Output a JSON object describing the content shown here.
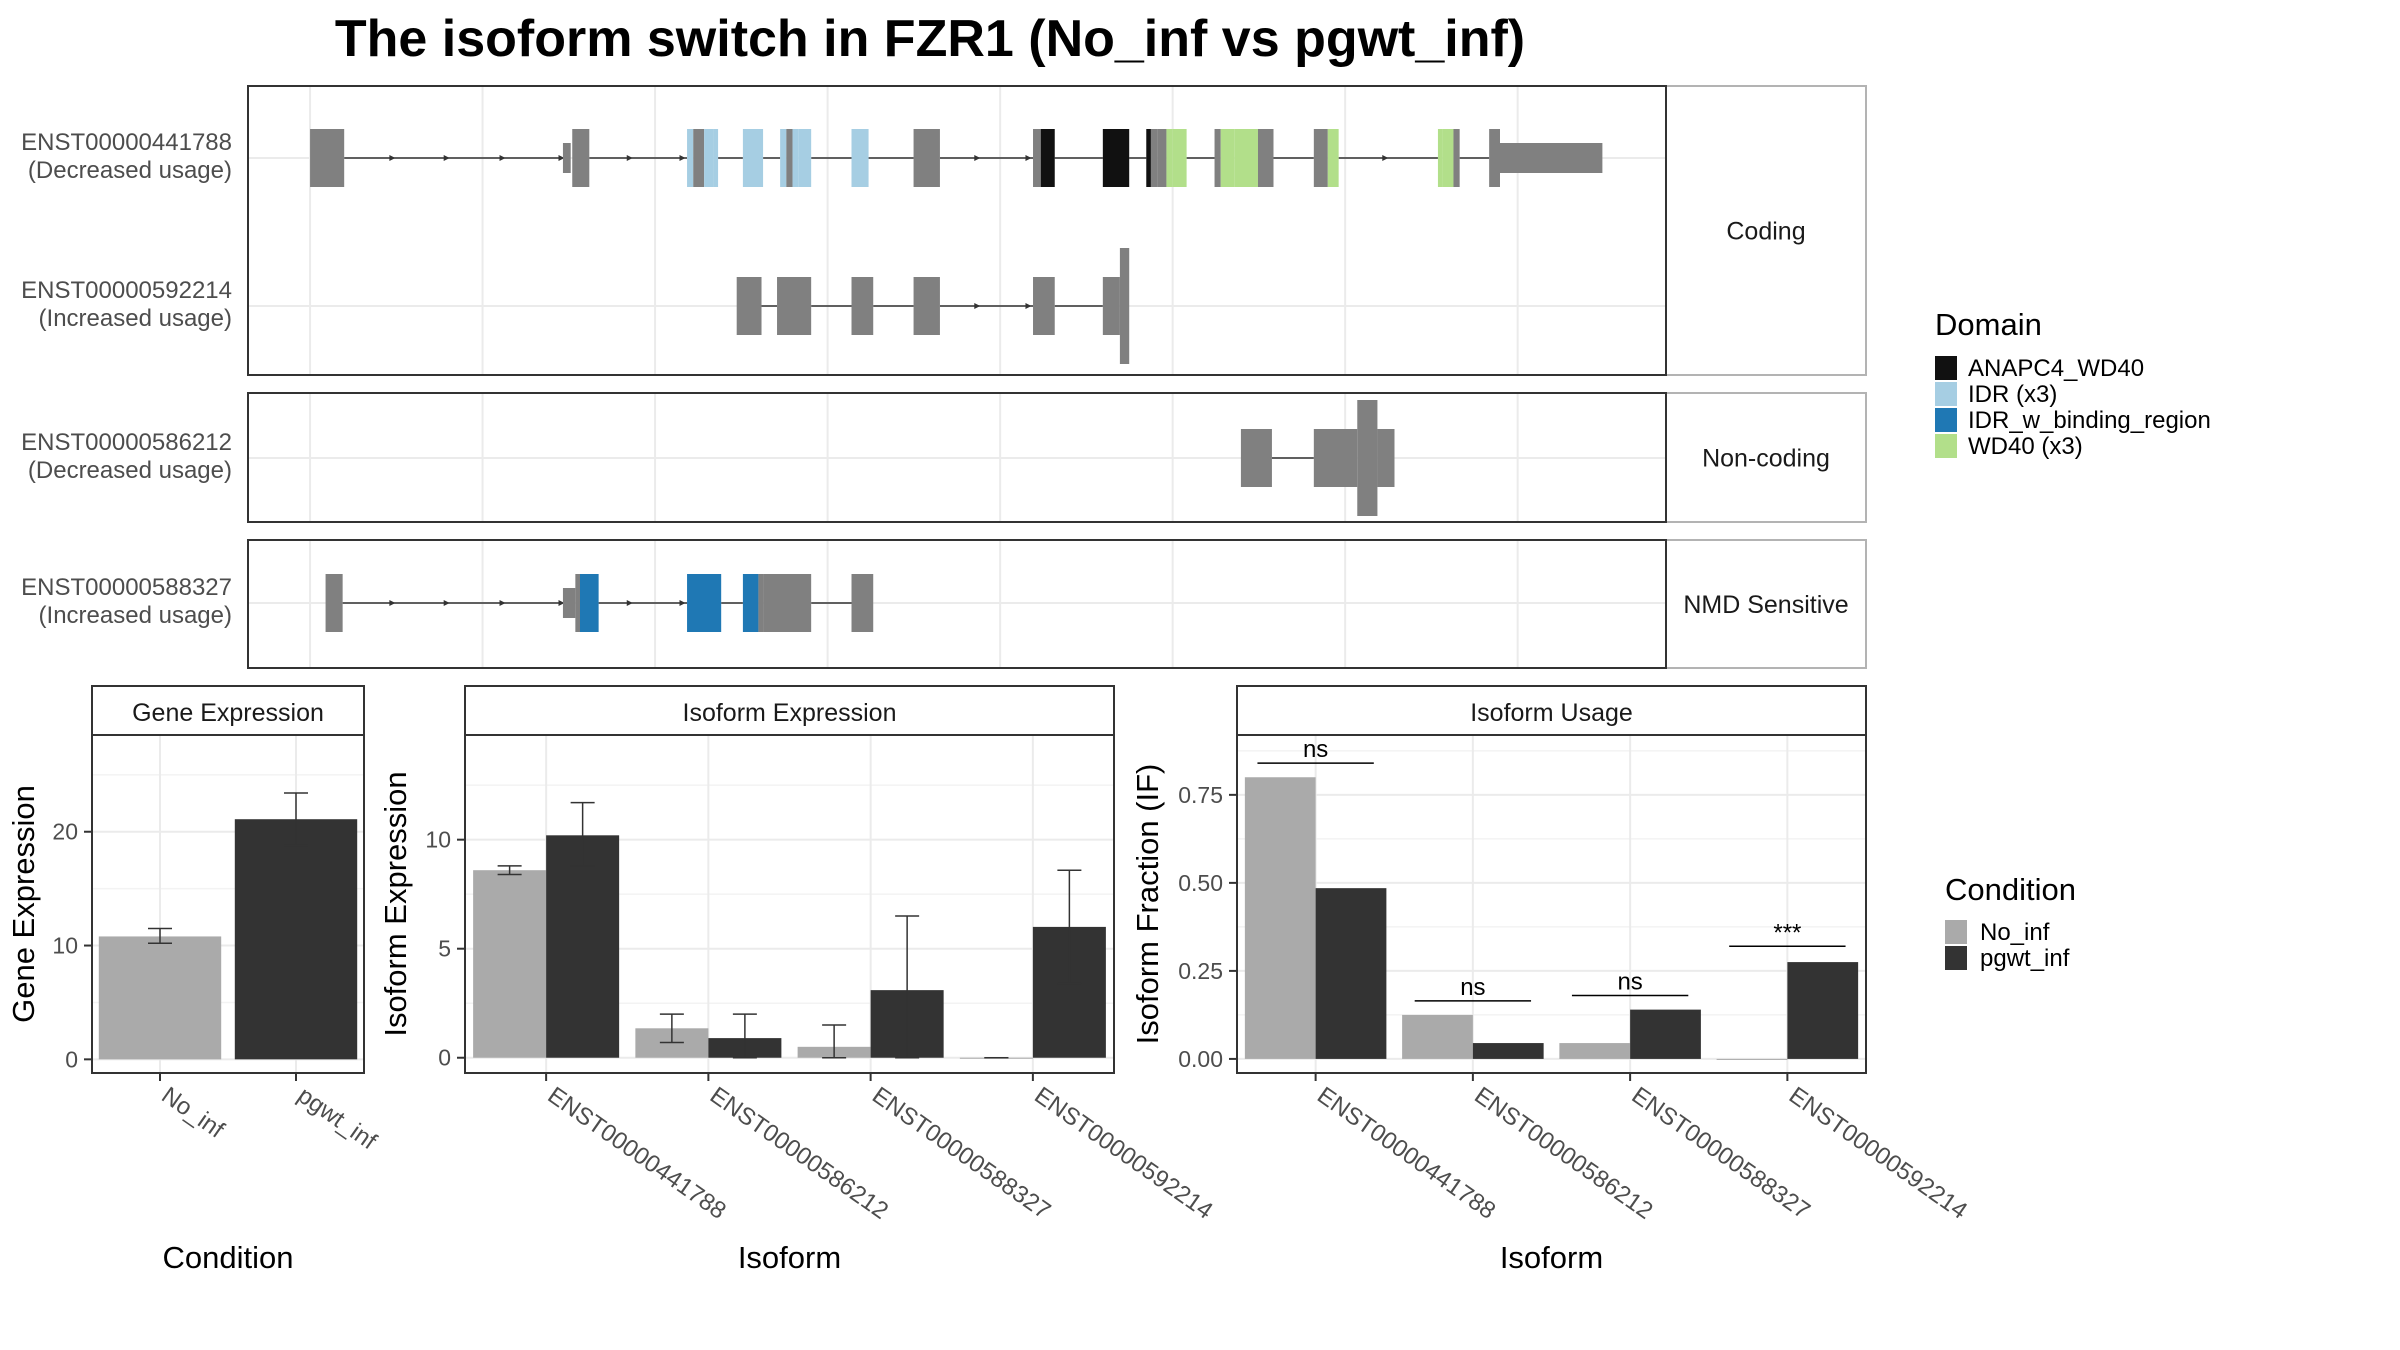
{
  "title": "The isoform switch in FZR1 (No_inf vs pgwt_inf)",
  "colors": {
    "exon": "#808080",
    "ANAPC4_WD40": "#111111",
    "IDR (x3)": "#a6cee3",
    "IDR_w_binding_region": "#1f78b4",
    "WD40 (x3)": "#b2df8a",
    "No_inf": "#aaaaaa",
    "pgwt_inf": "#333333",
    "strip_bg": "#ffffff",
    "grid": "#ebebeb"
  },
  "structure": {
    "facets": [
      {
        "label": "Coding",
        "isoforms": [
          {
            "id": "ENST00000441788",
            "usage": "(Decreased usage)",
            "exons": [
              [
                200,
                222
              ],
              [
                363,
                368
              ],
              [
                369,
                380
              ],
              [
                443,
                447
              ],
              [
                447,
                454
              ],
              [
                454,
                460
              ],
              [
                460,
                463
              ],
              [
                479,
                492
              ],
              [
                503,
                507
              ],
              [
                507,
                511
              ],
              [
                511,
                515
              ],
              [
                515,
                523
              ],
              [
                549,
                560
              ],
              [
                589,
                606
              ],
              [
                666,
                671
              ],
              [
                671,
                680
              ],
              [
                711,
                728
              ],
              [
                739,
                742
              ],
              [
                742,
                746
              ],
              [
                746,
                752
              ],
              [
                752,
                756
              ],
              [
                756,
                765
              ],
              [
                783,
                787
              ],
              [
                787,
                796
              ],
              [
                796,
                811
              ],
              [
                811,
                821
              ],
              [
                847,
                856
              ],
              [
                856,
                863
              ],
              [
                927,
                930
              ],
              [
                930,
                937
              ],
              [
                937,
                941
              ],
              [
                960,
                967
              ],
              [
                967,
                1033
              ]
            ],
            "exon_types": [
              "cds",
              "utr",
              "cds",
              "IDR (x3)",
              "cds",
              "IDR (x3)",
              "IDR (x3)",
              "IDR (x3)",
              "IDR (x3)",
              "cds",
              "IDR (x3)",
              "IDR (x3)",
              "IDR (x3)",
              "cds",
              "cds",
              "ANAPC4_WD40",
              "ANAPC4_WD40",
              "ANAPC4_WD40",
              "cds",
              "cds",
              "WD40 (x3)",
              "WD40 (x3)",
              "cds",
              "WD40 (x3)",
              "WD40 (x3)",
              "cds",
              "cds",
              "WD40 (x3)",
              "WD40 (x3)",
              "WD40 (x3)",
              "cds",
              "cds",
              "utr"
            ],
            "introns": [
              [
                222,
                363
              ],
              [
                380,
                443
              ],
              [
                463,
                479
              ],
              [
                492,
                503
              ],
              [
                523,
                549
              ],
              [
                560,
                589
              ],
              [
                606,
                666
              ],
              [
                680,
                711
              ],
              [
                728,
                739
              ],
              [
                765,
                783
              ],
              [
                821,
                847
              ],
              [
                863,
                927
              ],
              [
                941,
                960
              ]
            ],
            "arrows": [
              255,
              290,
              326,
              364,
              408,
              442,
              632,
              665,
              895
            ]
          },
          {
            "id": "ENST00000592214",
            "usage": "(Increased usage)",
            "exons": [
              [
                475,
                491
              ],
              [
                501,
                523
              ],
              [
                549,
                563
              ],
              [
                589,
                606
              ],
              [
                666,
                680
              ],
              [
                711,
                722
              ],
              [
                722,
                728
              ]
            ],
            "exon_types": [
              "cds",
              "cds",
              "cds",
              "cds",
              "cds",
              "cds",
              "tall"
            ],
            "introns": [
              [
                491,
                501
              ],
              [
                523,
                549
              ],
              [
                563,
                589
              ],
              [
                606,
                666
              ],
              [
                680,
                711
              ]
            ],
            "arrows": [
              632,
              665
            ]
          }
        ]
      },
      {
        "label": "Non-coding",
        "isoforms": [
          {
            "id": "ENST00000586212",
            "usage": "(Decreased usage)",
            "exons": [
              [
                800,
                820
              ],
              [
                847,
                875
              ],
              [
                875,
                888
              ],
              [
                888,
                899
              ]
            ],
            "exon_types": [
              "cds",
              "cds",
              "tall",
              "cds"
            ],
            "introns": [
              [
                820,
                847
              ]
            ],
            "arrows": []
          }
        ]
      },
      {
        "label": "NMD Sensitive",
        "isoforms": [
          {
            "id": "ENST00000588327",
            "usage": "(Increased usage)",
            "exons": [
              [
                210,
                221
              ],
              [
                363,
                371
              ],
              [
                371,
                374
              ],
              [
                374,
                386
              ],
              [
                443,
                465
              ],
              [
                479,
                489
              ],
              [
                489,
                492
              ],
              [
                492,
                523
              ],
              [
                549,
                563
              ]
            ],
            "exon_types": [
              "cds",
              "utr",
              "cds",
              "IDR_w_binding_region",
              "IDR_w_binding_region",
              "IDR_w_binding_region",
              "cds",
              "cds",
              "cds"
            ],
            "introns": [
              [
                221,
                363
              ],
              [
                386,
                443
              ],
              [
                465,
                479
              ],
              [
                523,
                549
              ]
            ],
            "arrows": [
              255,
              290,
              326,
              364,
              408,
              442
            ]
          }
        ]
      }
    ]
  },
  "legend_domain": {
    "title": "Domain",
    "items": [
      "ANAPC4_WD40",
      "IDR (x3)",
      "IDR_w_binding_region",
      "WD40 (x3)"
    ]
  },
  "legend_condition": {
    "title": "Condition",
    "items": [
      "No_inf",
      "pgwt_inf"
    ]
  },
  "chart_data": [
    {
      "type": "bar",
      "title": "Gene Expression",
      "xlabel": "Condition",
      "ylabel": "Gene Expression",
      "categories": [
        "No_inf",
        "pgwt_inf"
      ],
      "series": [
        {
          "name": "No_inf",
          "values": [
            10.8,
            null
          ],
          "err_low": [
            10.2,
            null
          ],
          "err_high": [
            11.5,
            null
          ]
        },
        {
          "name": "pgwt_inf",
          "values": [
            null,
            21.1
          ],
          "err_low": [
            null,
            18.8
          ],
          "err_high": [
            null,
            23.4
          ]
        }
      ],
      "ylim": [
        -1.2,
        28.5
      ],
      "yticks": [
        0,
        10,
        20
      ],
      "grid": true
    },
    {
      "type": "bar",
      "title": "Isoform Expression",
      "xlabel": "Isoform",
      "ylabel": "Isoform Expression",
      "categories": [
        "ENST00000441788",
        "ENST00000586212",
        "ENST00000588327",
        "ENST00000592214"
      ],
      "series": [
        {
          "name": "No_inf",
          "values": [
            8.6,
            1.35,
            0.5,
            0.0
          ],
          "err_low": [
            8.4,
            0.7,
            0.0,
            0.0
          ],
          "err_high": [
            8.8,
            2.0,
            1.5,
            0.0
          ]
        },
        {
          "name": "pgwt_inf",
          "values": [
            10.2,
            0.9,
            3.1,
            6.0
          ],
          "err_low": [
            8.8,
            0.0,
            0.0,
            3.4
          ],
          "err_high": [
            11.7,
            2.0,
            6.5,
            8.6
          ]
        }
      ],
      "ylim": [
        -0.7,
        14.8
      ],
      "yticks": [
        0,
        5,
        10
      ],
      "grid": true
    },
    {
      "type": "bar",
      "title": "Isoform Usage",
      "xlabel": "Isoform",
      "ylabel": "Isoform Fraction (IF)",
      "categories": [
        "ENST00000441788",
        "ENST00000586212",
        "ENST00000588327",
        "ENST00000592214"
      ],
      "series": [
        {
          "name": "No_inf",
          "values": [
            0.8,
            0.125,
            0.045,
            0.0
          ]
        },
        {
          "name": "pgwt_inf",
          "values": [
            0.485,
            0.045,
            0.14,
            0.275
          ]
        }
      ],
      "significance": [
        {
          "label": "ns",
          "y": 0.84
        },
        {
          "label": "ns",
          "y": 0.165
        },
        {
          "label": "ns",
          "y": 0.18
        },
        {
          "label": "***",
          "y": 0.32
        }
      ],
      "ylim": [
        -0.04,
        0.92
      ],
      "yticks": [
        0.0,
        0.25,
        0.5,
        0.75
      ],
      "ytick_labels": [
        "0.00",
        "0.25",
        "0.50",
        "0.75"
      ],
      "grid": true
    }
  ]
}
